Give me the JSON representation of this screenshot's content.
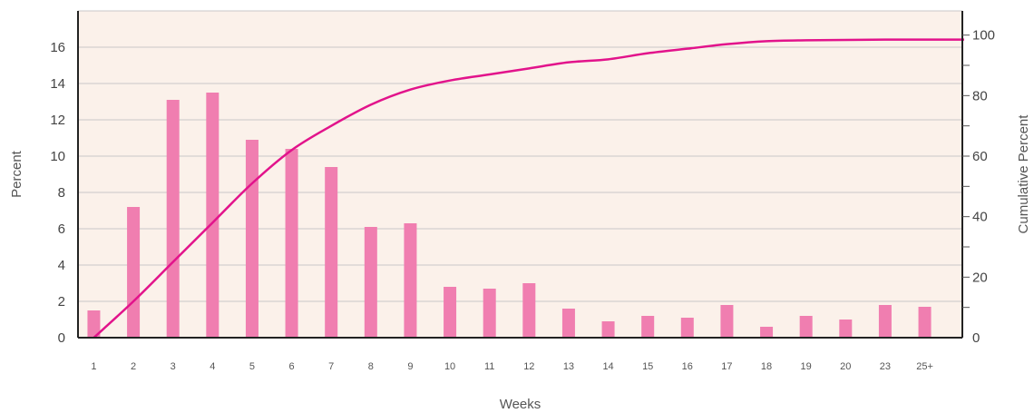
{
  "chart_data": {
    "type": "bar",
    "title": "",
    "xlabel": "Weeks",
    "ylabel": "Percent",
    "y2label": "Cumulative Percent",
    "categories": [
      "1",
      "2",
      "3",
      "4",
      "5",
      "6",
      "7",
      "8",
      "9",
      "10",
      "11",
      "12",
      "13",
      "14",
      "15",
      "16",
      "17",
      "18",
      "19",
      "20",
      "23",
      "25+"
    ],
    "ylim": [
      0,
      18
    ],
    "y2lim": [
      0,
      108
    ],
    "yticks": [
      0,
      2,
      4,
      6,
      8,
      10,
      12,
      14,
      16
    ],
    "y2ticks": [
      0,
      20,
      40,
      60,
      80,
      100
    ],
    "grid": true,
    "series": [
      {
        "kind": "bar",
        "axis": "left",
        "color": "#f07eb0",
        "values": [
          1.5,
          7.2,
          13.1,
          13.5,
          10.9,
          10.4,
          9.4,
          6.1,
          6.3,
          2.8,
          2.7,
          3.0,
          1.6,
          0.9,
          1.2,
          1.1,
          1.8,
          0.6,
          1.2,
          1.0,
          1.8,
          1.7
        ]
      },
      {
        "kind": "line",
        "axis": "right",
        "color": "#e2138b",
        "values": [
          0,
          12,
          25,
          38,
          51,
          62,
          70,
          77,
          82,
          85,
          87,
          89,
          91,
          92,
          94,
          95.5,
          97,
          98,
          98.3,
          98.4,
          98.5,
          98.5
        ]
      }
    ],
    "colors": {
      "background": "#fbf1ea",
      "grid": "#c8c8c8",
      "axis": "#222222"
    }
  }
}
